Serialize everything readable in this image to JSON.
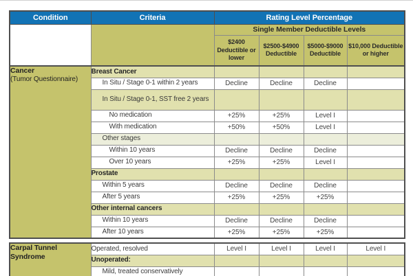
{
  "colors": {
    "header_blue": "#1273b5",
    "olive": "#c5c36c",
    "cream": "#e1e1ae",
    "cream_light": "#eceedb",
    "border_outer": "#4e4e4e",
    "border_inner": "#8a8a8a",
    "header_text": "#ffffff",
    "body_text": "#3b3b3b"
  },
  "header": {
    "condition": "Condition",
    "criteria": "Criteria",
    "rating": "Rating Level Percentage",
    "single_member": "Single Member Deductible Levels",
    "deductibles": [
      "$2400 Deductible or lower",
      "$2500-$4900 Deductible",
      "$5000-$9000 Deductible",
      "$10,000 Deductible or higher"
    ]
  },
  "sections": [
    {
      "condition": "Cancer",
      "condition_note": "(Tumor Questionnaire)",
      "rows": [
        {
          "criteria": "Breast Cancer",
          "values": [
            "",
            "",
            "",
            ""
          ],
          "bg": "cream",
          "indent": 0,
          "bold": true
        },
        {
          "criteria": "In Situ / Stage 0-1 within 2 years",
          "values": [
            "Decline",
            "Decline",
            "Decline",
            ""
          ],
          "bg": "white",
          "indent": 1,
          "bold": false
        },
        {
          "criteria": "In Situ / Stage 0-1, SST free 2 years",
          "values": [
            "",
            "",
            "",
            ""
          ],
          "bg": "cream",
          "indent": 1,
          "bold": false,
          "tall": true
        },
        {
          "criteria": "No medication",
          "values": [
            "+25%",
            "+25%",
            "Level I",
            ""
          ],
          "bg": "white",
          "indent": 2,
          "bold": false
        },
        {
          "criteria": "With medication",
          "values": [
            "+50%",
            "+50%",
            "Level I",
            ""
          ],
          "bg": "white",
          "indent": 2,
          "bold": false
        },
        {
          "criteria": "Other stages",
          "values": [
            "",
            "",
            "",
            ""
          ],
          "bg": "creamLight",
          "indent": 1,
          "bold": false
        },
        {
          "criteria": "Within 10 years",
          "values": [
            "Decline",
            "Decline",
            "Decline",
            ""
          ],
          "bg": "white",
          "indent": 2,
          "bold": false
        },
        {
          "criteria": "Over 10 years",
          "values": [
            "+25%",
            "+25%",
            "Level I",
            ""
          ],
          "bg": "white",
          "indent": 2,
          "bold": false
        },
        {
          "criteria": "Prostate",
          "values": [
            "",
            "",
            "",
            ""
          ],
          "bg": "cream",
          "indent": 0,
          "bold": true
        },
        {
          "criteria": "Within 5 years",
          "values": [
            "Decline",
            "Decline",
            "Decline",
            ""
          ],
          "bg": "white",
          "indent": 1,
          "bold": false
        },
        {
          "criteria": "After 5 years",
          "values": [
            "+25%",
            "+25%",
            "+25%",
            ""
          ],
          "bg": "white",
          "indent": 1,
          "bold": false
        },
        {
          "criteria": "Other internal cancers",
          "values": [
            "",
            "",
            "",
            ""
          ],
          "bg": "cream",
          "indent": 0,
          "bold": true
        },
        {
          "criteria": "Within 10 years",
          "values": [
            "Decline",
            "Decline",
            "Decline",
            ""
          ],
          "bg": "white",
          "indent": 1,
          "bold": false
        },
        {
          "criteria": "After 10 years",
          "values": [
            "+25%",
            "+25%",
            "+25%",
            ""
          ],
          "bg": "white",
          "indent": 1,
          "bold": false
        }
      ]
    },
    {
      "condition": "Carpal Tunnel Syndrome",
      "condition_note": "",
      "rows": [
        {
          "criteria": "Operated, resolved",
          "values": [
            "Level I",
            "Level I",
            "Level I",
            "Level I"
          ],
          "bg": "white",
          "indent": 0,
          "bold": false
        },
        {
          "criteria": "Unoperated:",
          "values": [
            "",
            "",
            "",
            ""
          ],
          "bg": "cream",
          "indent": 0,
          "bold": true
        },
        {
          "criteria": "Mild, treated conservatively",
          "values": [
            "",
            "",
            "",
            ""
          ],
          "bg": "white",
          "indent": 1,
          "bold": false
        }
      ]
    }
  ]
}
